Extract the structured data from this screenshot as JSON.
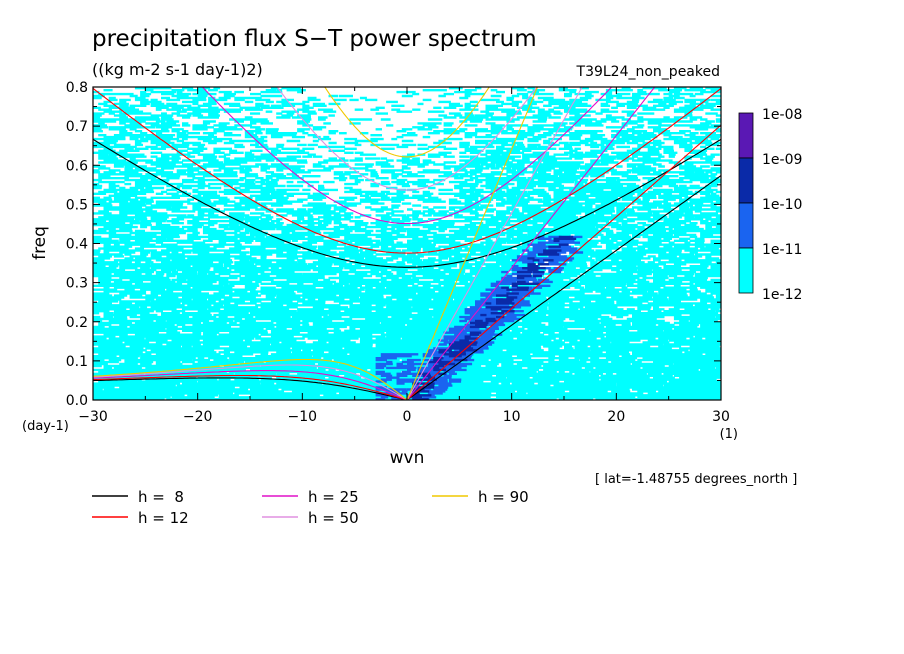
{
  "chart_data": {
    "type": "heatmap",
    "title": "precipitation flux S−T power spectrum",
    "subtitle": "((kg m-2 s-1 day-1)2)",
    "experiment": "T39L24_non_peaked",
    "xlabel": "wvn",
    "ylabel": "freq",
    "x_unit": "(1)",
    "y_unit": "(day-1)",
    "xlim": [
      -30,
      30
    ],
    "ylim": [
      0,
      0.8
    ],
    "x_ticks": [
      "−30",
      "−20",
      "−10",
      "0",
      "10",
      "20",
      "30"
    ],
    "y_ticks": [
      "0.0",
      "0.1",
      "0.2",
      "0.3",
      "0.4",
      "0.5",
      "0.6",
      "0.7",
      "0.8"
    ],
    "latitude_note": "[ lat=-1.48755 degrees_north ]",
    "colorbar": {
      "labels": [
        "1e-08",
        "1e-09",
        "1e-10",
        "1e-11",
        "1e-12"
      ],
      "colors": [
        "#5a18b4",
        "#0a2aa8",
        "#1a64f0",
        "#00ffff"
      ]
    },
    "dispersion_curves": [
      {
        "h": "8",
        "legend": "h =  8",
        "color": "#000000"
      },
      {
        "h": "12",
        "legend": "h = 12",
        "color": "#ff0000"
      },
      {
        "h": "25",
        "legend": "h = 25",
        "color": "#e010c8"
      },
      {
        "h": "50",
        "legend": "h = 50",
        "color": "#e090e0"
      },
      {
        "h": "90",
        "legend": "h = 90",
        "color": "#f0c800"
      }
    ]
  }
}
